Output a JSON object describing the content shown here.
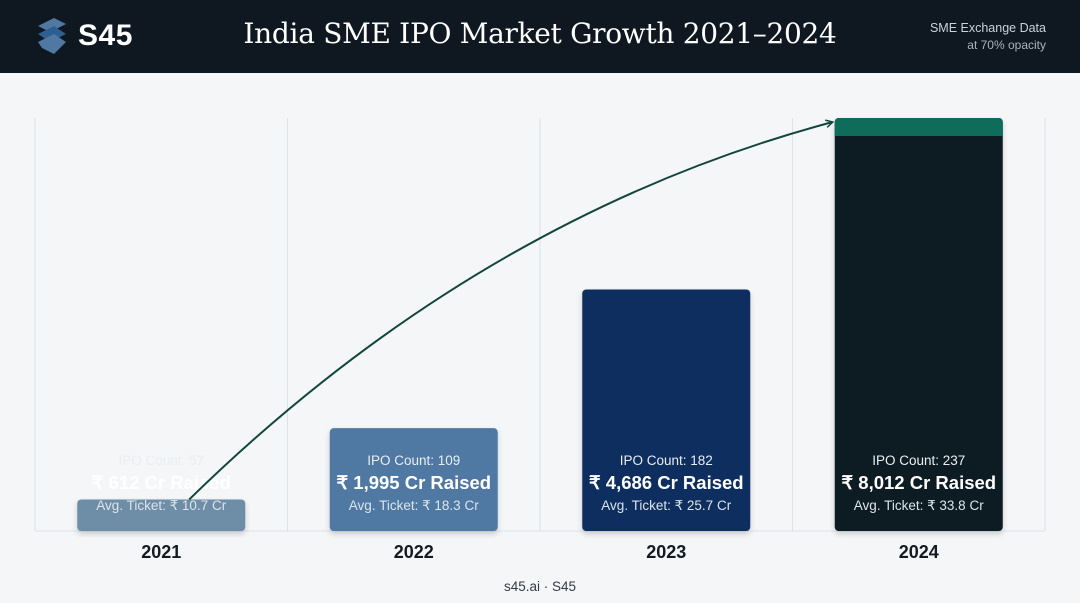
{
  "header": {
    "brand": "S45",
    "brand_icon": "s45-logo-icon",
    "title": "India SME IPO Market Growth 2021–2024",
    "note_line1": "SME Exchange Data",
    "note_line2": "at 70% opacity"
  },
  "footer": {
    "text": "s45.ai · S45"
  },
  "colors": {
    "header_bg": "#0f1720",
    "bar_2021": "#6e8da6",
    "bar_2022": "#4f79a3",
    "bar_2023": "#0e2d5e",
    "bar_2024": "#0c1a24",
    "bar_2024_cap": "#0f6b5a",
    "trend_arrow": "#12463d"
  },
  "chart_data": {
    "type": "bar",
    "title": "India SME IPO Market Growth 2021–2024",
    "categories": [
      "2021",
      "2022",
      "2023",
      "2024"
    ],
    "series": [
      {
        "values": [
          612,
          1995,
          4686,
          8012
        ]
      }
    ],
    "ylim": [
      0,
      8012
    ],
    "grid": "vertical",
    "trend_arrow": true,
    "bars": [
      {
        "year": "2021",
        "count_label": "IPO Count: 57",
        "raised_label": "₹ 612 Cr Raised",
        "ticket_label": "Avg. Ticket: ₹ 10.7 Cr",
        "ipo_count": 57,
        "raised_cr": 612,
        "avg_ticket_cr": 10.7
      },
      {
        "year": "2022",
        "count_label": "IPO Count: 109",
        "raised_label": "₹ 1,995 Cr Raised",
        "ticket_label": "Avg. Ticket: ₹ 18.3 Cr",
        "ipo_count": 109,
        "raised_cr": 1995,
        "avg_ticket_cr": 18.3
      },
      {
        "year": "2023",
        "count_label": "IPO Count: 182",
        "raised_label": "₹ 4,686 Cr Raised",
        "ticket_label": "Avg. Ticket: ₹ 25.7 Cr",
        "ipo_count": 182,
        "raised_cr": 4686,
        "avg_ticket_cr": 25.7
      },
      {
        "year": "2024",
        "count_label": "IPO Count: 237",
        "raised_label": "₹ 8,012 Cr Raised",
        "ticket_label": "Avg. Ticket: ₹ 33.8 Cr",
        "ipo_count": 237,
        "raised_cr": 8012,
        "avg_ticket_cr": 33.8
      }
    ]
  }
}
